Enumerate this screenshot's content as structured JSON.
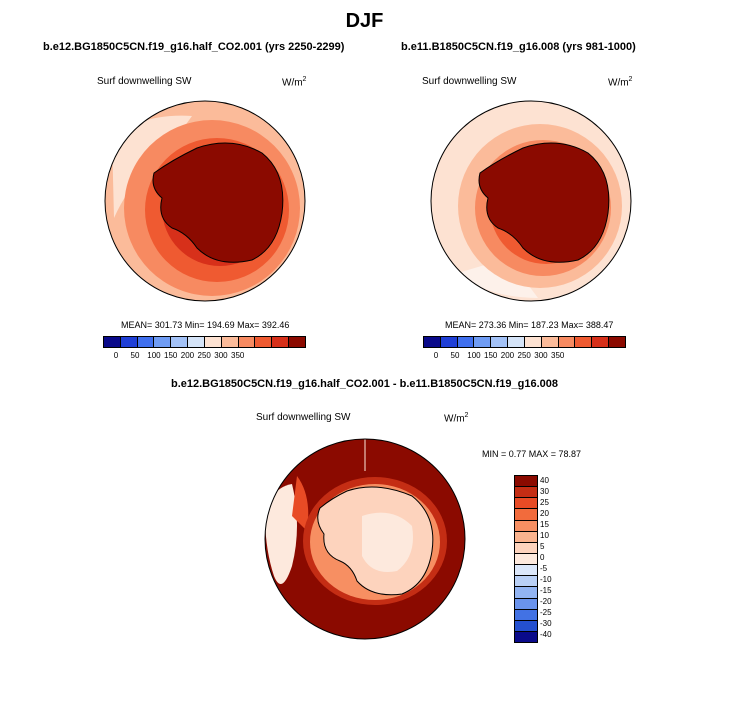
{
  "figure_title": "DJF",
  "panels": [
    {
      "title": "b.e12.BG1850C5CN.f19_g16.half_CO2.001 (yrs 2250-2299)",
      "variable": "Surf downwelling SW",
      "units": "W/m",
      "units_sup": "2",
      "stats": "MEAN= 301.73  Min= 194.69  Max= 392.46"
    },
    {
      "title": "b.e11.B1850C5CN.f19_g16.008 (yrs 981-1000)",
      "variable": "Surf downwelling SW",
      "units": "W/m",
      "units_sup": "2",
      "stats": "MEAN= 273.36  Min= 187.23  Max= 388.47"
    },
    {
      "title": "b.e12.BG1850C5CN.f19_g16.half_CO2.001 - b.e11.B1850C5CN.f19_g16.008",
      "variable": "Surf downwelling SW",
      "units": "W/m",
      "units_sup": "2",
      "stats": "MIN =   0.77 MAX =  78.87"
    }
  ],
  "chart_data": [
    {
      "type": "heatmap",
      "projection": "south polar stereographic",
      "title": "b.e12.BG1850C5CN.f19_g16.half_CO2.001 (yrs 2250-2299)",
      "variable": "Surf downwelling SW",
      "units": "W/m2",
      "mean": 301.73,
      "min": 194.69,
      "max": 392.46,
      "colorbar_ticks": [
        "0",
        "50",
        "100",
        "150",
        "200",
        "250",
        "300",
        "350"
      ]
    },
    {
      "type": "heatmap",
      "projection": "south polar stereographic",
      "title": "b.e11.B1850C5CN.f19_g16.008 (yrs 981-1000)",
      "variable": "Surf downwelling SW",
      "units": "W/m2",
      "mean": 273.36,
      "min": 187.23,
      "max": 388.47,
      "colorbar_ticks": [
        "0",
        "50",
        "100",
        "150",
        "200",
        "250",
        "300",
        "350"
      ]
    },
    {
      "type": "heatmap",
      "projection": "south polar stereographic",
      "title": "b.e12.BG1850C5CN.f19_g16.half_CO2.001 - b.e11.B1850C5CN.f19_g16.008",
      "variable": "Surf downwelling SW",
      "units": "W/m2",
      "min": 0.77,
      "max": 78.87,
      "colorbar_ticks": [
        "40",
        "30",
        "25",
        "20",
        "15",
        "10",
        "5",
        "0",
        "-5",
        "-10",
        "-15",
        "-20",
        "-25",
        "-30",
        "-40"
      ]
    }
  ],
  "colors": {
    "abs_scale": [
      "#0a0a8a",
      "#1f3fd6",
      "#3f6fee",
      "#6f9cf4",
      "#a3c2f7",
      "#d5e4f8",
      "#fde2d2",
      "#fbbb9a",
      "#f78a61",
      "#ef5a31",
      "#d7301a",
      "#8b0a00"
    ],
    "diff_scale": [
      "#8b0a00",
      "#c42d14",
      "#e84b25",
      "#f26b3c",
      "#f78f62",
      "#fab38e",
      "#fdd3bd",
      "#fde9dd",
      "#dbe7fa",
      "#b9d0f6",
      "#92b4f2",
      "#6a93ec",
      "#4272e4",
      "#2450d0",
      "#0a0a8a"
    ]
  }
}
